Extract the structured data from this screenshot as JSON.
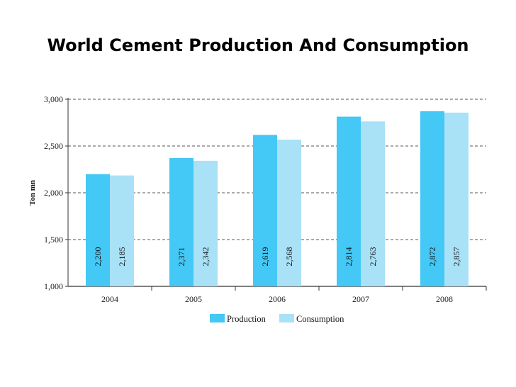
{
  "slide": {
    "title": "World Cement Production And Consumption"
  },
  "chart_data": {
    "type": "bar",
    "title": "World Cement Production And Consumption",
    "xlabel": "",
    "ylabel": "Ton  mn",
    "categories": [
      "2004",
      "2005",
      "2006",
      "2007",
      "2008"
    ],
    "series": [
      {
        "name": "Production",
        "color": "#44c8f5",
        "values": [
          2200,
          2371,
          2619,
          2814,
          2872
        ],
        "labels": [
          "2,200",
          "2,371",
          "2,619",
          "2,814",
          "2,872"
        ]
      },
      {
        "name": "Consumption",
        "color": "#a9e1f7",
        "values": [
          2185,
          2342,
          2568,
          2763,
          2857
        ],
        "labels": [
          "2,185",
          "2,342",
          "2,568",
          "2,763",
          "2,857"
        ]
      }
    ],
    "ylim": [
      1000,
      3000
    ],
    "yticks": [
      1000,
      1500,
      2000,
      2500,
      3000
    ],
    "ytick_labels": [
      "1,000",
      "1,500",
      "2,000",
      "2,500",
      "3,000"
    ],
    "grid": true,
    "legend": "bottom-center"
  }
}
